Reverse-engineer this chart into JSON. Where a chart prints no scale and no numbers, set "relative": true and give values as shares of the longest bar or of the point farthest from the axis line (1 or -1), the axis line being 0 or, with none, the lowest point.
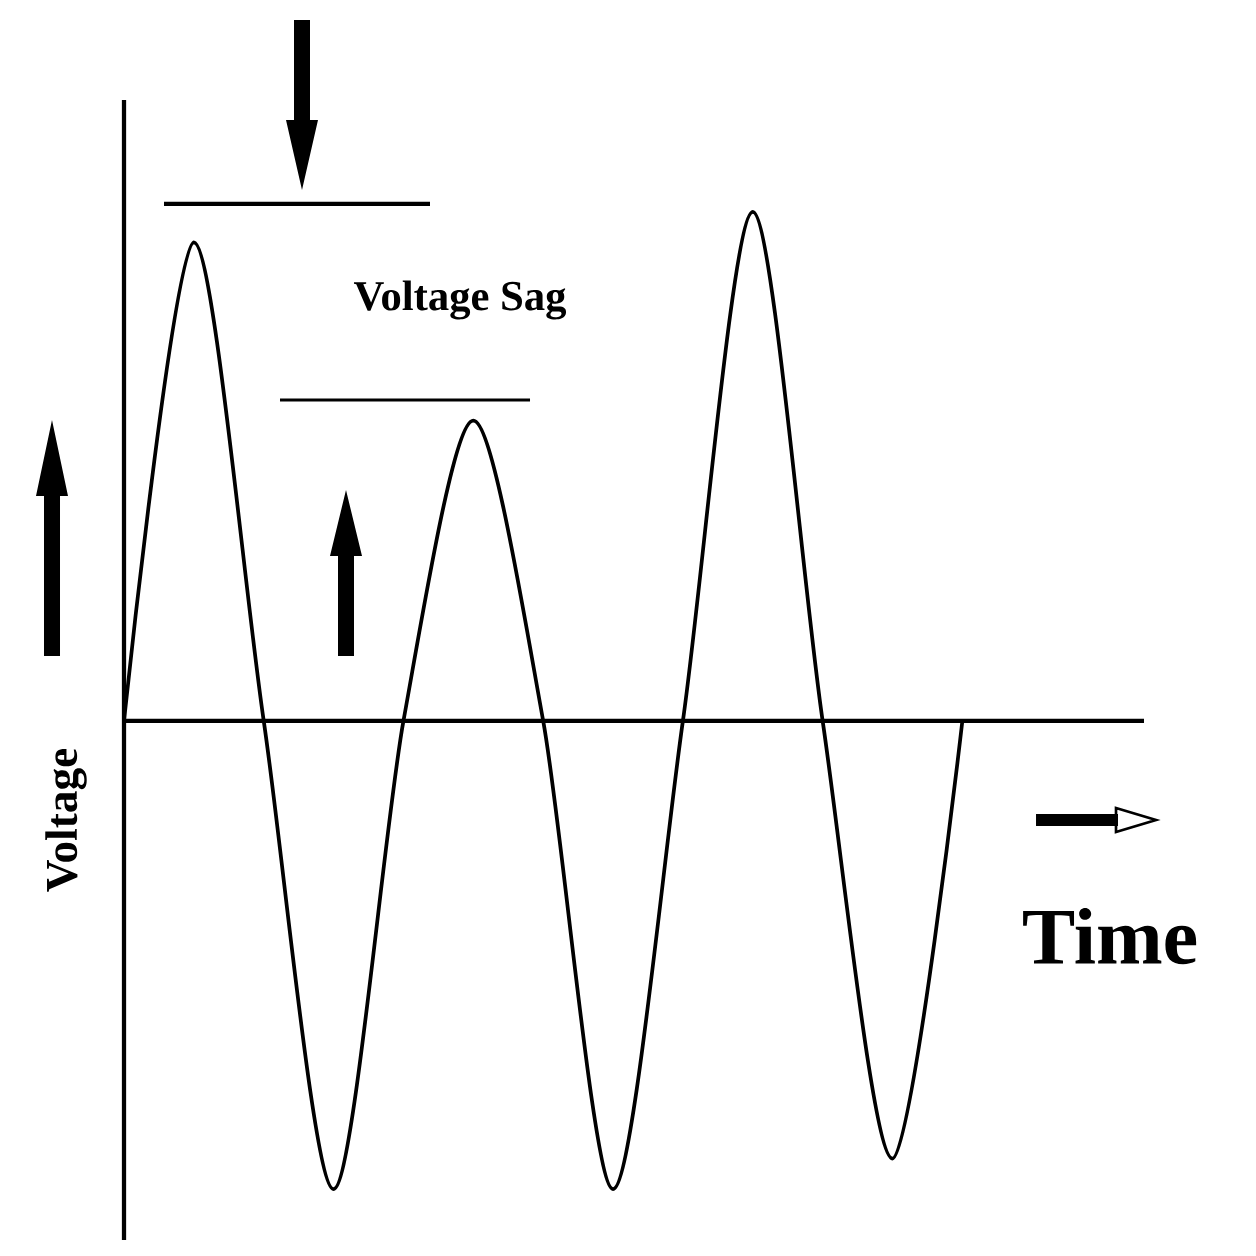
{
  "chart_data": {
    "type": "line",
    "relative": true,
    "color": "#000000",
    "categories": [
      null,
      null,
      null,
      null,
      null,
      null,
      null,
      null,
      null,
      null,
      null,
      null,
      null
    ],
    "values": [
      0,
      0.94,
      0,
      -0.92,
      0,
      0.59,
      0,
      -0.92,
      0,
      1,
      0,
      -0.86,
      0
    ],
    "xlabel": "Time",
    "ylabel": "Voltage",
    "annotations": [
      "Voltage Sag"
    ]
  }
}
